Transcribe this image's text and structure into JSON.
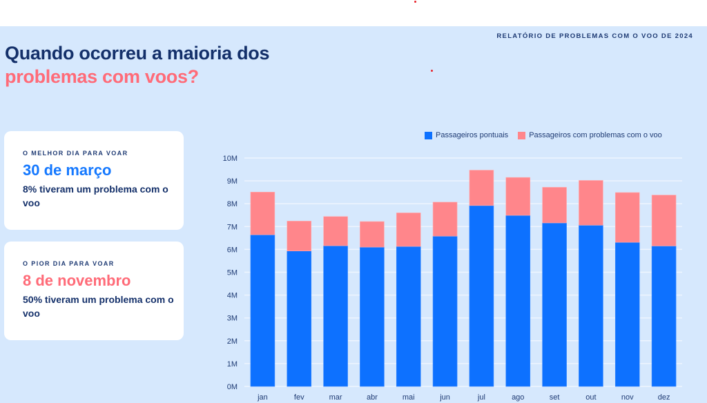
{
  "report_label": "RELATÓRIO DE PROBLEMAS COM O VOO DE 2024",
  "title": {
    "line1": "Quando ocorreu a maioria dos",
    "line2": "problemas com voos?"
  },
  "cards": [
    {
      "kicker": "O MELHOR DIA PARA VOAR",
      "date": "30 de março",
      "description": "8% tiveram um problema com o voo",
      "accent": "#1478FF"
    },
    {
      "kicker": "O PIOR DIA PARA VOAR",
      "date": "8 de novembro",
      "description": "50% tiveram um problema com o voo",
      "accent": "#FF6B78"
    }
  ],
  "colors": {
    "background": "#D6E8FD",
    "on_time": "#0D71FF",
    "problems": "#FF868B",
    "text_dark": "#14306A"
  },
  "chart_data": {
    "type": "bar",
    "stacked": true,
    "title": "",
    "xlabel": "",
    "ylabel": "",
    "categories": [
      "jan",
      "fev",
      "mar",
      "abr",
      "mai",
      "jun",
      "jul",
      "ago",
      "set",
      "out",
      "nov",
      "dez"
    ],
    "series": [
      {
        "name": "Passageiros pontuais",
        "color": "#0D71FF",
        "values": [
          6.64,
          5.93,
          6.16,
          6.1,
          6.13,
          6.58,
          7.92,
          7.49,
          7.16,
          7.06,
          6.31,
          6.15
        ]
      },
      {
        "name": "Passageiros com problemas com o voo",
        "color": "#FF868B",
        "values": [
          1.87,
          1.31,
          1.28,
          1.12,
          1.47,
          1.49,
          1.55,
          1.66,
          1.56,
          1.96,
          2.18,
          2.23
        ]
      }
    ],
    "units": "millions of passengers",
    "ylim": [
      0,
      10
    ],
    "yticks": [
      "0M",
      "1M",
      "2M",
      "3M",
      "4M",
      "5M",
      "6M",
      "7M",
      "8M",
      "9M",
      "10M"
    ],
    "grid": true,
    "legend_position": "top-right"
  }
}
